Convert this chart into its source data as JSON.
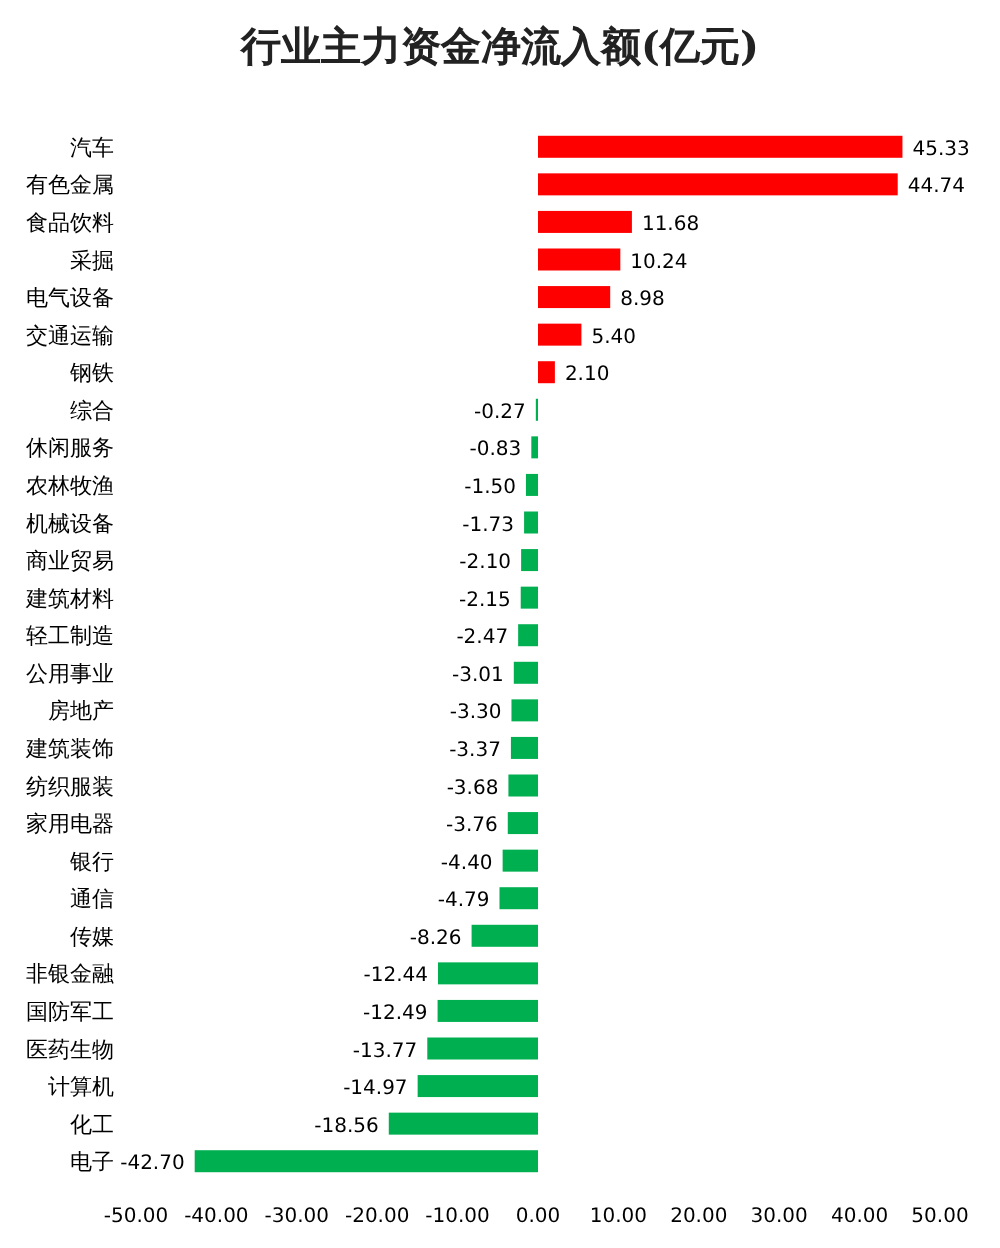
{
  "chart_data": {
    "type": "bar",
    "orientation": "horizontal",
    "title": "行业主力资金净流入额(亿元)",
    "categories": [
      "汽车",
      "有色金属",
      "食品饮料",
      "采掘",
      "电气设备",
      "交通运输",
      "钢铁",
      "综合",
      "休闲服务",
      "农林牧渔",
      "机械设备",
      "商业贸易",
      "建筑材料",
      "轻工制造",
      "公用事业",
      "房地产",
      "建筑装饰",
      "纺织服装",
      "家用电器",
      "银行",
      "通信",
      "传媒",
      "非银金融",
      "国防军工",
      "医药生物",
      "计算机",
      "化工",
      "电子"
    ],
    "values": [
      45.33,
      44.74,
      11.68,
      10.24,
      8.98,
      5.4,
      2.1,
      -0.27,
      -0.83,
      -1.5,
      -1.73,
      -2.1,
      -2.15,
      -2.47,
      -3.01,
      -3.3,
      -3.37,
      -3.68,
      -3.76,
      -4.4,
      -4.79,
      -8.26,
      -12.44,
      -12.49,
      -13.77,
      -14.97,
      -18.56,
      -42.7
    ],
    "value_labels": [
      "45.33",
      "44.74",
      "11.68",
      "10.24",
      "8.98",
      "5.40",
      "2.10",
      "-0.27",
      "-0.83",
      "-1.50",
      "-1.73",
      "-2.10",
      "-2.15",
      "-2.47",
      "-3.01",
      "-3.30",
      "-3.37",
      "-3.68",
      "-3.76",
      "-4.40",
      "-4.79",
      "-8.26",
      "-12.44",
      "-12.49",
      "-13.77",
      "-14.97",
      "-18.56",
      "-42.70"
    ],
    "colors": [
      "#ff0000",
      "#ff0000",
      "#ff0000",
      "#ff0000",
      "#ff0000",
      "#ff0000",
      "#ff0000",
      "#00b050",
      "#00b050",
      "#00b050",
      "#00b050",
      "#00b050",
      "#00b050",
      "#00b050",
      "#00b050",
      "#00b050",
      "#00b050",
      "#00b050",
      "#00b050",
      "#00b050",
      "#00b050",
      "#00b050",
      "#00b050",
      "#00b050",
      "#00b050",
      "#00b050",
      "#00b050",
      "#00b050"
    ],
    "xlim": [
      -50,
      50
    ],
    "xticks": [
      {
        "value": -50,
        "label": "-50.00"
      },
      {
        "value": -40,
        "label": "-40.00"
      },
      {
        "value": -30,
        "label": "-30.00"
      },
      {
        "value": -20,
        "label": "-20.00"
      },
      {
        "value": -10,
        "label": "-10.00"
      },
      {
        "value": 0,
        "label": "0.00"
      },
      {
        "value": 10,
        "label": "10.00"
      },
      {
        "value": 20,
        "label": "20.00"
      },
      {
        "value": 30,
        "label": "30.00"
      },
      {
        "value": 40,
        "label": "40.00"
      },
      {
        "value": 50,
        "label": "50.00"
      }
    ],
    "grid": false
  }
}
